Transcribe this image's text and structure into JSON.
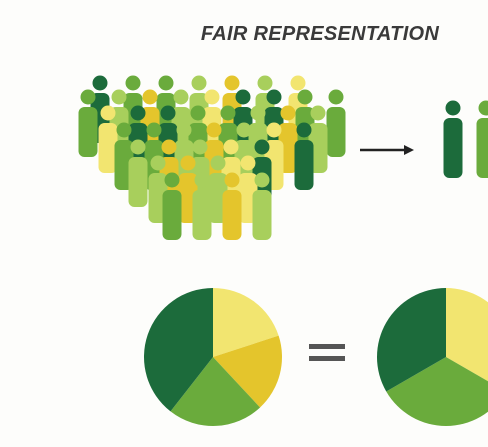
{
  "header": {
    "title": "FAIR REPRESENTATION"
  }
}
